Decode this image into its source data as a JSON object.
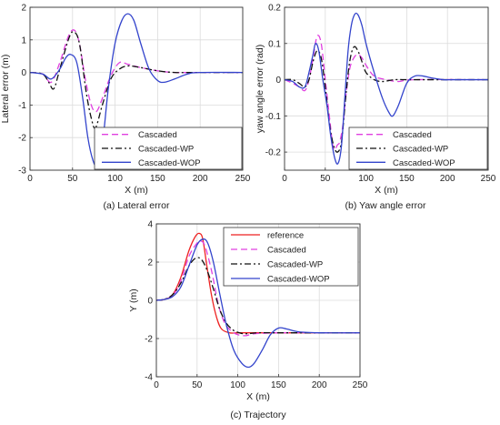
{
  "chart_data": [
    {
      "type": "line",
      "caption": "(a) Lateral error",
      "xlabel": "X (m)",
      "ylabel": "Lateral error (m)",
      "xlim": [
        0,
        250
      ],
      "ylim": [
        -3,
        2
      ],
      "xticks": [
        "0",
        "50",
        "100",
        "150",
        "200",
        "250"
      ],
      "yticks": [
        "-3",
        "-2",
        "-1",
        "0",
        "1",
        "2"
      ],
      "grid": true,
      "legend_position": "bottom-right",
      "series": [
        {
          "name": "Cascaded",
          "color": "#e040e0",
          "dash": "dashed",
          "x": [
            0,
            15,
            25,
            35,
            45,
            52,
            58,
            65,
            72,
            78,
            85,
            95,
            105,
            115,
            130,
            150,
            170,
            190,
            210,
            250
          ],
          "y": [
            0,
            -0.05,
            -0.3,
            0.3,
            1.1,
            1.3,
            0.9,
            -0.2,
            -1.0,
            -1.2,
            -0.8,
            -0.1,
            0.3,
            0.25,
            0.15,
            0.05,
            0,
            0,
            0,
            0
          ]
        },
        {
          "name": "Cascaded-WP",
          "color": "#111111",
          "dash": "dashdot",
          "x": [
            0,
            15,
            22,
            28,
            35,
            45,
            51,
            58,
            66,
            72,
            77,
            85,
            95,
            105,
            115,
            130,
            150,
            170,
            200,
            250
          ],
          "y": [
            0,
            -0.05,
            -0.3,
            -0.5,
            0.1,
            1.0,
            1.25,
            0.9,
            -0.6,
            -1.4,
            -1.7,
            -1.0,
            -0.2,
            0.1,
            0.2,
            0.15,
            0.05,
            0,
            0,
            0
          ]
        },
        {
          "name": "Cascaded-WOP",
          "color": "#3344cc",
          "dash": "solid",
          "x": [
            0,
            15,
            25,
            35,
            42,
            48,
            55,
            62,
            68,
            74,
            78,
            85,
            92,
            100,
            108,
            115,
            122,
            130,
            140,
            150,
            158,
            170,
            185,
            200,
            250
          ],
          "y": [
            0,
            -0.05,
            -0.2,
            0.1,
            0.45,
            0.55,
            0.3,
            -0.8,
            -2.0,
            -2.7,
            -2.8,
            -2.2,
            -0.5,
            0.9,
            1.6,
            1.8,
            1.6,
            0.9,
            0.1,
            -0.25,
            -0.3,
            -0.2,
            -0.05,
            0,
            0
          ]
        }
      ]
    },
    {
      "type": "line",
      "caption": "(b) Yaw angle error",
      "xlabel": "X (m)",
      "ylabel": "yaw angle error (rad)",
      "xlim": [
        0,
        250
      ],
      "ylim": [
        -0.25,
        0.2
      ],
      "xticks": [
        "0",
        "50",
        "100",
        "150",
        "200",
        "250"
      ],
      "yticks": [
        "-0.2",
        "-0.1",
        "0",
        "0.1",
        "0.2"
      ],
      "grid": true,
      "legend_position": "bottom-right",
      "series": [
        {
          "name": "Cascaded",
          "color": "#e040e0",
          "dash": "dashed",
          "x": [
            0,
            10,
            18,
            25,
            30,
            35,
            40,
            45,
            50,
            55,
            60,
            65,
            68,
            72,
            75,
            80,
            85,
            90,
            95,
            100,
            110,
            125,
            140,
            160,
            250
          ],
          "y": [
            0,
            -0.01,
            -0.02,
            -0.03,
            0.0,
            0.06,
            0.12,
            0.1,
            0.0,
            -0.1,
            -0.19,
            -0.18,
            -0.17,
            -0.12,
            -0.05,
            0.03,
            0.06,
            0.07,
            0.06,
            0.04,
            0.01,
            0.0,
            -0.005,
            0,
            0
          ]
        },
        {
          "name": "Cascaded-WP",
          "color": "#111111",
          "dash": "dashdot",
          "x": [
            0,
            10,
            18,
            25,
            30,
            35,
            40,
            45,
            50,
            55,
            60,
            65,
            70,
            75,
            80,
            85,
            90,
            95,
            100,
            110,
            120,
            135,
            150,
            170,
            250
          ],
          "y": [
            0,
            0,
            -0.01,
            -0.02,
            0.0,
            0.05,
            0.08,
            0.06,
            -0.02,
            -0.12,
            -0.18,
            -0.2,
            -0.17,
            -0.05,
            0.05,
            0.09,
            0.08,
            0.05,
            0.02,
            0.0,
            -0.005,
            0,
            0,
            0,
            0
          ]
        },
        {
          "name": "Cascaded-WOP",
          "color": "#3344cc",
          "dash": "solid",
          "x": [
            0,
            10,
            18,
            25,
            30,
            35,
            38,
            42,
            47,
            52,
            57,
            62,
            66,
            70,
            74,
            78,
            82,
            86,
            90,
            95,
            100,
            110,
            120,
            128,
            133,
            140,
            150,
            160,
            170,
            180,
            195,
            210,
            250
          ],
          "y": [
            0,
            -0.005,
            -0.02,
            -0.02,
            0.02,
            0.07,
            0.1,
            0.08,
            0.0,
            -0.07,
            -0.16,
            -0.22,
            -0.23,
            -0.18,
            -0.05,
            0.08,
            0.15,
            0.18,
            0.18,
            0.15,
            0.1,
            0.02,
            -0.05,
            -0.09,
            -0.1,
            -0.07,
            -0.01,
            0.01,
            0.01,
            0.005,
            0.0,
            0,
            0
          ]
        }
      ]
    },
    {
      "type": "line",
      "caption": "(c) Trajectory",
      "xlabel": "X (m)",
      "ylabel": "Y (m)",
      "xlim": [
        0,
        250
      ],
      "ylim": [
        -4,
        4
      ],
      "xticks": [
        "0",
        "50",
        "100",
        "150",
        "200",
        "250"
      ],
      "yticks": [
        "-4",
        "-2",
        "0",
        "2",
        "4"
      ],
      "grid": true,
      "legend_position": "top-right",
      "series": [
        {
          "name": "reference",
          "color": "#ee2222",
          "dash": "solid",
          "x": [
            0,
            10,
            20,
            30,
            40,
            48,
            53,
            57,
            62,
            68,
            74,
            80,
            90,
            100,
            120,
            150,
            200,
            250
          ],
          "y": [
            0,
            0.05,
            0.3,
            1.2,
            2.6,
            3.35,
            3.5,
            3.2,
            1.8,
            0.2,
            -0.9,
            -1.5,
            -1.7,
            -1.7,
            -1.7,
            -1.7,
            -1.7,
            -1.7
          ]
        },
        {
          "name": "Cascaded",
          "color": "#e040e0",
          "dash": "dashed",
          "x": [
            0,
            10,
            20,
            30,
            40,
            50,
            55,
            60,
            68,
            76,
            84,
            92,
            100,
            110,
            120,
            150,
            200,
            250
          ],
          "y": [
            0,
            0.05,
            0.25,
            1.0,
            2.3,
            3.0,
            3.1,
            2.8,
            1.5,
            -0.2,
            -1.2,
            -1.6,
            -1.8,
            -1.85,
            -1.75,
            -1.7,
            -1.7,
            -1.7
          ]
        },
        {
          "name": "Cascaded-WP",
          "color": "#111111",
          "dash": "dashdot",
          "x": [
            0,
            10,
            20,
            30,
            40,
            48,
            55,
            62,
            70,
            78,
            86,
            94,
            102,
            110,
            125,
            150,
            200,
            250
          ],
          "y": [
            0,
            0.05,
            0.3,
            0.9,
            1.8,
            2.2,
            2.15,
            1.6,
            0.6,
            -0.5,
            -1.2,
            -1.55,
            -1.7,
            -1.75,
            -1.7,
            -1.7,
            -1.7,
            -1.7
          ]
        },
        {
          "name": "Cascaded-WOP",
          "color": "#3344cc",
          "dash": "solid",
          "x": [
            0,
            10,
            20,
            30,
            40,
            50,
            57,
            63,
            70,
            78,
            86,
            95,
            105,
            113,
            120,
            130,
            140,
            150,
            160,
            175,
            200,
            250
          ],
          "y": [
            0,
            0.05,
            0.2,
            0.7,
            1.8,
            2.9,
            3.2,
            3.0,
            2.0,
            0.3,
            -1.3,
            -2.6,
            -3.3,
            -3.5,
            -3.3,
            -2.6,
            -1.8,
            -1.45,
            -1.5,
            -1.65,
            -1.7,
            -1.7
          ]
        }
      ]
    }
  ]
}
